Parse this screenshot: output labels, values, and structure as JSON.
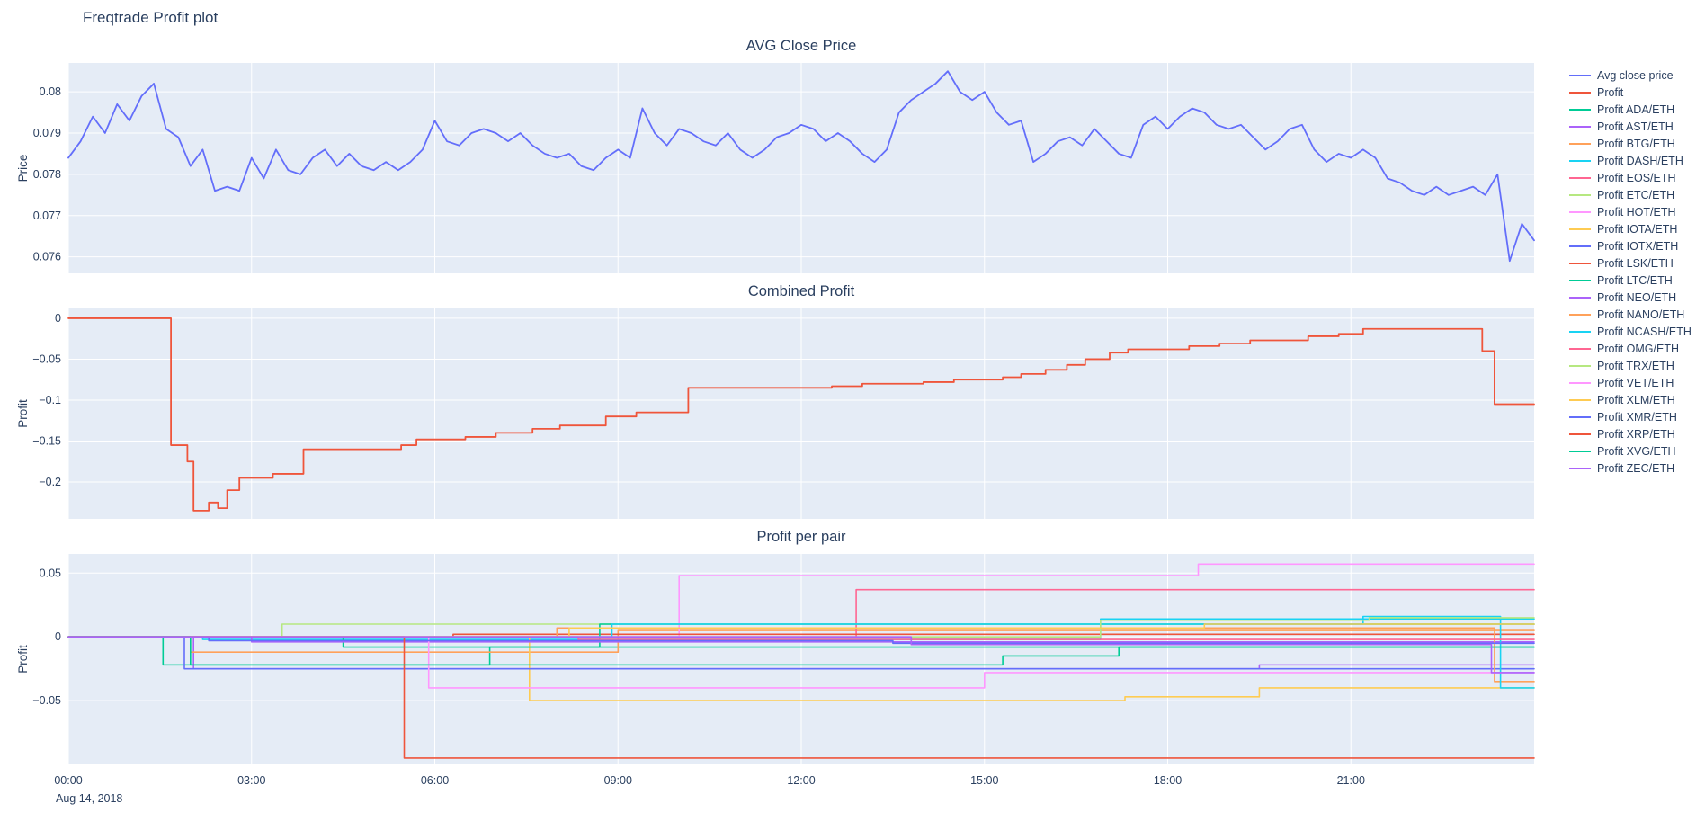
{
  "title": "Freqtrade Profit plot",
  "theme": {
    "paper_bg": "#ffffff",
    "plot_bg": "#e5ecf6",
    "grid": "#ffffff",
    "font": "#2a3f5f"
  },
  "xaxis": {
    "tick_labels": [
      "00:00",
      "03:00",
      "06:00",
      "09:00",
      "12:00",
      "15:00",
      "18:00",
      "21:00"
    ],
    "tick_hours": [
      0,
      3,
      6,
      9,
      12,
      15,
      18,
      21
    ],
    "range_hours": [
      0,
      24
    ],
    "date_label": "Aug 14, 2018"
  },
  "legend": {
    "items": [
      {
        "label": "Avg close price",
        "color": "#636efa"
      },
      {
        "label": "Profit",
        "color": "#EF553B"
      },
      {
        "label": "Profit ADA/ETH",
        "color": "#00cc96"
      },
      {
        "label": "Profit AST/ETH",
        "color": "#ab63fa"
      },
      {
        "label": "Profit BTG/ETH",
        "color": "#FFA15A"
      },
      {
        "label": "Profit DASH/ETH",
        "color": "#19d3f3"
      },
      {
        "label": "Profit EOS/ETH",
        "color": "#FF6692"
      },
      {
        "label": "Profit ETC/ETH",
        "color": "#B6E880"
      },
      {
        "label": "Profit HOT/ETH",
        "color": "#FF97FF"
      },
      {
        "label": "Profit IOTA/ETH",
        "color": "#FECB52"
      },
      {
        "label": "Profit IOTX/ETH",
        "color": "#636efa"
      },
      {
        "label": "Profit LSK/ETH",
        "color": "#EF553B"
      },
      {
        "label": "Profit LTC/ETH",
        "color": "#00cc96"
      },
      {
        "label": "Profit NEO/ETH",
        "color": "#ab63fa"
      },
      {
        "label": "Profit NANO/ETH",
        "color": "#FFA15A"
      },
      {
        "label": "Profit NCASH/ETH",
        "color": "#19d3f3"
      },
      {
        "label": "Profit OMG/ETH",
        "color": "#FF6692"
      },
      {
        "label": "Profit TRX/ETH",
        "color": "#B6E880"
      },
      {
        "label": "Profit VET/ETH",
        "color": "#FF97FF"
      },
      {
        "label": "Profit XLM/ETH",
        "color": "#FECB52"
      },
      {
        "label": "Profit XMR/ETH",
        "color": "#636efa"
      },
      {
        "label": "Profit XRP/ETH",
        "color": "#EF553B"
      },
      {
        "label": "Profit XVG/ETH",
        "color": "#00cc96"
      },
      {
        "label": "Profit ZEC/ETH",
        "color": "#ab63fa"
      }
    ]
  },
  "chart_data": [
    {
      "id": "avg_close_price",
      "type": "line",
      "title": "AVG Close Price",
      "ylabel": "Price",
      "ylim": [
        0.0756,
        0.0807
      ],
      "ytick_vals": [
        0.076,
        0.077,
        0.078,
        0.079,
        0.08
      ],
      "ytick_labels": [
        "0.076",
        "0.077",
        "0.078",
        "0.079",
        "0.08"
      ],
      "show_x_axis": false,
      "series": [
        {
          "name": "Avg close price",
          "color": "#636efa",
          "mode": "linear",
          "width": 1.8,
          "x_start": 0,
          "x_step": 0.2,
          "y": [
            0.0784,
            0.0788,
            0.0794,
            0.079,
            0.0797,
            0.0793,
            0.0799,
            0.0802,
            0.0791,
            0.0789,
            0.0782,
            0.0786,
            0.0776,
            0.0777,
            0.0776,
            0.0784,
            0.0779,
            0.0786,
            0.0781,
            0.078,
            0.0784,
            0.0786,
            0.0782,
            0.0785,
            0.0782,
            0.0781,
            0.0783,
            0.0781,
            0.0783,
            0.0786,
            0.0793,
            0.0788,
            0.0787,
            0.079,
            0.0791,
            0.079,
            0.0788,
            0.079,
            0.0787,
            0.0785,
            0.0784,
            0.0785,
            0.0782,
            0.0781,
            0.0784,
            0.0786,
            0.0784,
            0.0796,
            0.079,
            0.0787,
            0.0791,
            0.079,
            0.0788,
            0.0787,
            0.079,
            0.0786,
            0.0784,
            0.0786,
            0.0789,
            0.079,
            0.0792,
            0.0791,
            0.0788,
            0.079,
            0.0788,
            0.0785,
            0.0783,
            0.0786,
            0.0795,
            0.0798,
            0.08,
            0.0802,
            0.0805,
            0.08,
            0.0798,
            0.08,
            0.0795,
            0.0792,
            0.0793,
            0.0783,
            0.0785,
            0.0788,
            0.0789,
            0.0787,
            0.0791,
            0.0788,
            0.0785,
            0.0784,
            0.0792,
            0.0794,
            0.0791,
            0.0794,
            0.0796,
            0.0795,
            0.0792,
            0.0791,
            0.0792,
            0.0789,
            0.0786,
            0.0788,
            0.0791,
            0.0792,
            0.0786,
            0.0783,
            0.0785,
            0.0784,
            0.0786,
            0.0784,
            0.0779,
            0.0778,
            0.0776,
            0.0775,
            0.0777,
            0.0775,
            0.0776,
            0.0777,
            0.0775,
            0.078,
            0.0759,
            0.0768,
            0.0764
          ]
        }
      ]
    },
    {
      "id": "combined_profit",
      "type": "line",
      "title": "Combined Profit",
      "ylabel": "Profit",
      "ylim": [
        -0.245,
        0.012
      ],
      "ytick_vals": [
        -0.2,
        -0.15,
        -0.1,
        -0.05,
        0
      ],
      "ytick_labels": [
        "−0.2",
        "−0.15",
        "−0.1",
        "−0.05",
        "0"
      ],
      "show_x_axis": false,
      "series": [
        {
          "name": "Profit",
          "color": "#EF553B",
          "mode": "step",
          "width": 1.8,
          "x": [
            0,
            1.68,
            1.95,
            2.05,
            2.3,
            2.45,
            2.6,
            2.8,
            3.35,
            3.85,
            5.45,
            5.7,
            6.5,
            7.0,
            7.6,
            8.05,
            8.8,
            9.3,
            10.15,
            12.5,
            13.0,
            14.0,
            14.5,
            15.3,
            15.6,
            16.0,
            16.35,
            16.65,
            17.05,
            17.35,
            18.35,
            18.85,
            19.35,
            20.3,
            20.8,
            21.2,
            23.15,
            23.35,
            24
          ],
          "y": [
            0,
            -0.155,
            -0.175,
            -0.235,
            -0.225,
            -0.232,
            -0.21,
            -0.195,
            -0.19,
            -0.16,
            -0.155,
            -0.148,
            -0.145,
            -0.14,
            -0.135,
            -0.131,
            -0.12,
            -0.115,
            -0.085,
            -0.083,
            -0.08,
            -0.078,
            -0.075,
            -0.072,
            -0.068,
            -0.063,
            -0.057,
            -0.05,
            -0.042,
            -0.038,
            -0.034,
            -0.031,
            -0.027,
            -0.022,
            -0.019,
            -0.013,
            -0.04,
            -0.105,
            -0.105
          ]
        }
      ]
    },
    {
      "id": "profit_per_pair",
      "type": "line",
      "title": "Profit per pair",
      "ylabel": "Profit",
      "ylim": [
        -0.1,
        0.065
      ],
      "ytick_vals": [
        -0.05,
        0,
        0.05
      ],
      "ytick_labels": [
        "−0.05",
        "0",
        "0.05"
      ],
      "show_x_axis": true,
      "series": [
        {
          "name": "Profit ADA/ETH",
          "color": "#00cc96",
          "mode": "step",
          "width": 1.6,
          "x": [
            0,
            1.55,
            6.9,
            24
          ],
          "y": [
            0,
            -0.022,
            -0.008,
            -0.008
          ]
        },
        {
          "name": "Profit AST/ETH",
          "color": "#ab63fa",
          "mode": "step",
          "width": 1.6,
          "x": [
            0,
            2.05,
            19.5,
            24
          ],
          "y": [
            0,
            -0.025,
            -0.022,
            -0.022
          ]
        },
        {
          "name": "Profit BTG/ETH",
          "color": "#FFA15A",
          "mode": "step",
          "width": 1.6,
          "x": [
            0,
            2.0,
            9.0,
            24
          ],
          "y": [
            0,
            -0.012,
            0.005,
            0.005
          ]
        },
        {
          "name": "Profit DASH/ETH",
          "color": "#19d3f3",
          "mode": "step",
          "width": 1.6,
          "x": [
            0,
            2.2,
            16.9,
            24
          ],
          "y": [
            0,
            -0.002,
            0.014,
            0.014
          ]
        },
        {
          "name": "Profit EOS/ETH",
          "color": "#FF6692",
          "mode": "step",
          "width": 1.6,
          "x": [
            0,
            12.9,
            24
          ],
          "y": [
            0,
            0.037,
            0.037
          ]
        },
        {
          "name": "Profit ETC/ETH",
          "color": "#B6E880",
          "mode": "step",
          "width": 1.6,
          "x": [
            0,
            3.5,
            24
          ],
          "y": [
            0,
            0.01,
            0.01
          ]
        },
        {
          "name": "Profit HOT/ETH",
          "color": "#FF97FF",
          "mode": "step",
          "width": 1.6,
          "x": [
            0,
            10.0,
            18.5,
            24
          ],
          "y": [
            0,
            0.048,
            0.057,
            0.057
          ]
        },
        {
          "name": "Profit IOTA/ETH",
          "color": "#FECB52",
          "mode": "step",
          "width": 1.6,
          "x": [
            0,
            7.55,
            17.3,
            19.5,
            24
          ],
          "y": [
            0,
            -0.05,
            -0.047,
            -0.04,
            -0.04
          ]
        },
        {
          "name": "Profit IOTX/ETH",
          "color": "#636efa",
          "mode": "step",
          "width": 1.6,
          "x": [
            0,
            1.9,
            24
          ],
          "y": [
            0,
            -0.025,
            -0.025
          ]
        },
        {
          "name": "Profit LSK/ETH",
          "color": "#EF553B",
          "mode": "step",
          "width": 1.6,
          "x": [
            0,
            6.3,
            24
          ],
          "y": [
            0,
            0.002,
            0.002
          ]
        },
        {
          "name": "Profit LTC/ETH",
          "color": "#00cc96",
          "mode": "step",
          "width": 1.6,
          "x": [
            0,
            4.5,
            8.7,
            24
          ],
          "y": [
            0,
            -0.008,
            0.01,
            0.01
          ]
        },
        {
          "name": "Profit NEO/ETH",
          "color": "#ab63fa",
          "mode": "step",
          "width": 1.6,
          "x": [
            0,
            3.0,
            24
          ],
          "y": [
            0,
            -0.004,
            -0.004
          ]
        },
        {
          "name": "Profit NANO/ETH",
          "color": "#FFA15A",
          "mode": "step",
          "width": 1.6,
          "x": [
            0,
            8.0,
            23.35,
            24
          ],
          "y": [
            0,
            0.007,
            -0.035,
            -0.035
          ]
        },
        {
          "name": "Profit NCASH/ETH",
          "color": "#19d3f3",
          "mode": "step",
          "width": 1.6,
          "x": [
            0,
            8.9,
            21.2,
            23.45,
            24
          ],
          "y": [
            0,
            0.01,
            0.016,
            -0.04,
            -0.04
          ]
        },
        {
          "name": "Profit OMG/ETH",
          "color": "#FF6692",
          "mode": "step",
          "width": 1.6,
          "x": [
            0,
            8.35,
            24
          ],
          "y": [
            0,
            -0.002,
            -0.002
          ]
        },
        {
          "name": "Profit TRX/ETH",
          "color": "#B6E880",
          "mode": "step",
          "width": 1.6,
          "x": [
            0,
            16.9,
            21.3,
            24
          ],
          "y": [
            0,
            0.013,
            0.015,
            0.015
          ]
        },
        {
          "name": "Profit VET/ETH",
          "color": "#FF97FF",
          "mode": "step",
          "width": 1.6,
          "x": [
            0,
            5.9,
            15.0,
            24
          ],
          "y": [
            0,
            -0.04,
            -0.028,
            -0.028
          ]
        },
        {
          "name": "Profit XLM/ETH",
          "color": "#FECB52",
          "mode": "step",
          "width": 1.6,
          "x": [
            0,
            8.2,
            18.6,
            24
          ],
          "y": [
            0,
            0.007,
            0.01,
            0.01
          ]
        },
        {
          "name": "Profit XMR/ETH",
          "color": "#636efa",
          "mode": "step",
          "width": 1.6,
          "x": [
            0,
            2.3,
            13.5,
            24
          ],
          "y": [
            0,
            -0.003,
            -0.005,
            -0.005
          ]
        },
        {
          "name": "Profit XRP/ETH",
          "color": "#EF553B",
          "mode": "step",
          "width": 1.6,
          "x": [
            0,
            5.5,
            24
          ],
          "y": [
            0,
            -0.095,
            -0.095
          ]
        },
        {
          "name": "Profit XVG/ETH",
          "color": "#00cc96",
          "mode": "step",
          "width": 1.6,
          "x": [
            0,
            2.0,
            15.3,
            17.2,
            24
          ],
          "y": [
            0,
            -0.022,
            -0.015,
            -0.008,
            -0.008
          ]
        },
        {
          "name": "Profit ZEC/ETH",
          "color": "#ab63fa",
          "mode": "step",
          "width": 1.6,
          "x": [
            0,
            13.8,
            23.3,
            24
          ],
          "y": [
            0,
            -0.006,
            -0.028,
            -0.028
          ]
        }
      ]
    }
  ]
}
